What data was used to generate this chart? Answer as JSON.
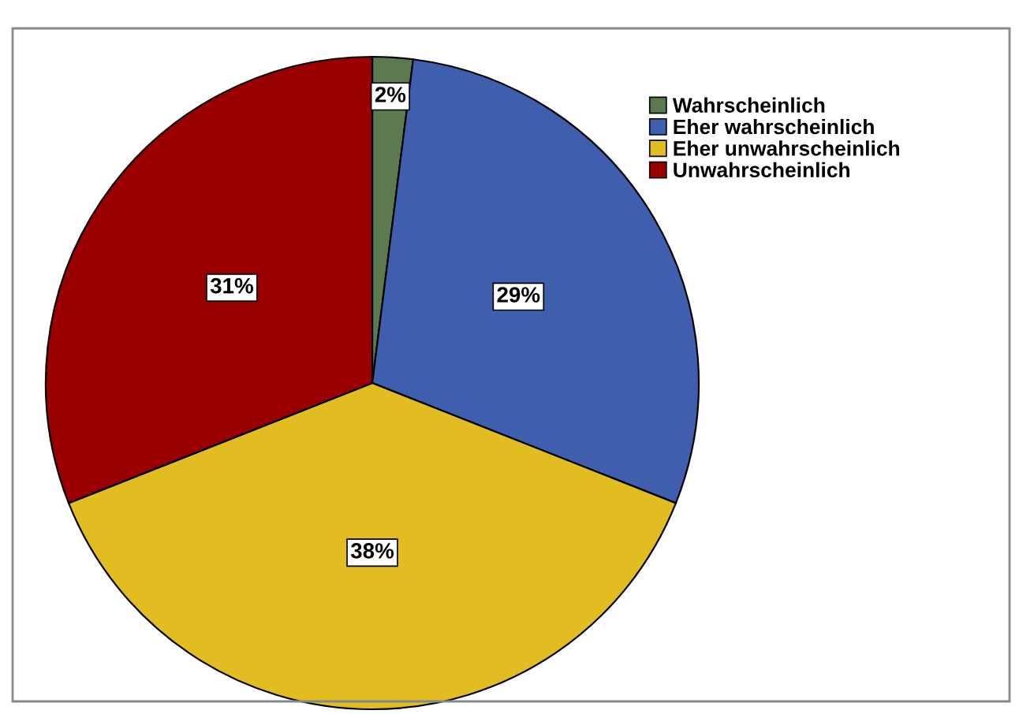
{
  "chart_data": {
    "type": "pie",
    "categories": [
      "Wahrscheinlich",
      "Eher wahrscheinlich",
      "Eher unwahrscheinlich",
      "Unwahrscheinlich"
    ],
    "values": [
      2,
      29,
      38,
      31
    ],
    "colors": [
      "#5b7a50",
      "#3f5eae",
      "#e2bd21",
      "#9b0000"
    ],
    "value_labels": [
      "2%",
      "29%",
      "38%",
      "31%"
    ],
    "legend": "top right"
  }
}
